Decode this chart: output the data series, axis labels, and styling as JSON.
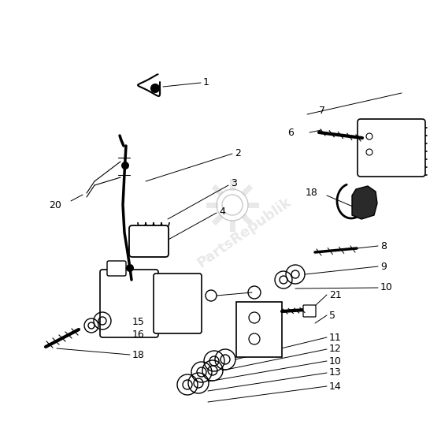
{
  "bg_color": "#ffffff",
  "line_color": "#000000",
  "watermark_text": "PartsRepublik",
  "watermark_color": "#c8c8c8",
  "watermark_alpha": 0.4,
  "figsize": [
    5.6,
    5.62
  ],
  "dpi": 100
}
